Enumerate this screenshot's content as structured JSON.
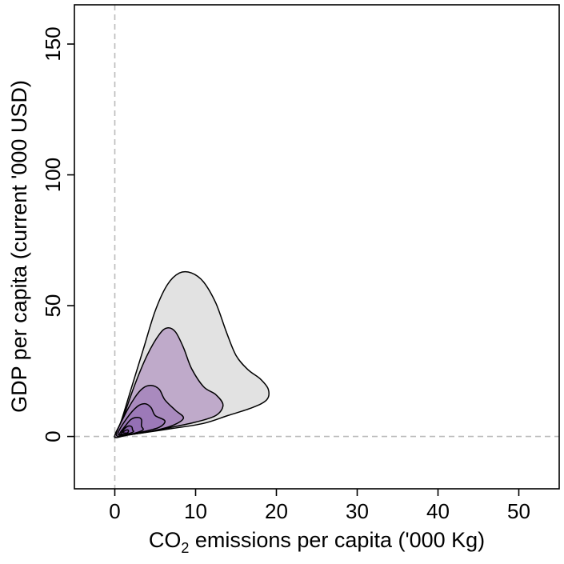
{
  "chart_data": {
    "type": "contour",
    "title": "",
    "xlabel": {
      "prefix": "CO",
      "subscript": "2",
      "suffix": " emissions per capita ('000 Kg)"
    },
    "ylabel": "GDP per capita (current '000 USD)",
    "xlim": [
      -5,
      55
    ],
    "ylim": [
      -20,
      165
    ],
    "xticks": [
      0,
      10,
      20,
      30,
      40,
      50
    ],
    "yticks": [
      0,
      50,
      100,
      150
    ],
    "reference_lines": {
      "x": 0,
      "y": 0,
      "style": "dashed",
      "color": "#bbbbbb"
    },
    "grid": false,
    "legend": "none",
    "levels": [
      {
        "name": "level-1",
        "fill": "#e2e2e2",
        "points": [
          [
            0,
            0
          ],
          [
            0.8,
            6
          ],
          [
            2,
            18
          ],
          [
            3.5,
            33
          ],
          [
            5,
            48
          ],
          [
            6.5,
            58
          ],
          [
            8,
            62.5
          ],
          [
            9.5,
            62.5
          ],
          [
            11,
            59
          ],
          [
            12.5,
            51
          ],
          [
            13.8,
            40
          ],
          [
            15,
            31
          ],
          [
            16.5,
            25.5
          ],
          [
            18,
            22
          ],
          [
            19,
            18
          ],
          [
            18.8,
            14
          ],
          [
            17,
            11
          ],
          [
            14,
            8
          ],
          [
            11,
            5
          ],
          [
            7,
            3
          ],
          [
            3,
            1.2
          ],
          [
            0.5,
            0.2
          ]
        ]
      },
      {
        "name": "level-2",
        "fill": "#bfaaca",
        "points": [
          [
            0,
            0
          ],
          [
            1,
            7
          ],
          [
            2.5,
            20
          ],
          [
            4,
            31
          ],
          [
            5.5,
            39
          ],
          [
            6.5,
            41.5
          ],
          [
            7.5,
            40
          ],
          [
            8.5,
            34
          ],
          [
            9.5,
            26
          ],
          [
            11,
            19
          ],
          [
            12.5,
            16
          ],
          [
            13.4,
            12
          ],
          [
            12.5,
            8
          ],
          [
            10,
            5.5
          ],
          [
            7,
            3.5
          ],
          [
            4,
            1.8
          ],
          [
            1.5,
            0.5
          ]
        ]
      },
      {
        "name": "level-3",
        "fill": "#a98abe",
        "points": [
          [
            0.2,
            0.5
          ],
          [
            1.2,
            8
          ],
          [
            2.5,
            15
          ],
          [
            3.5,
            18.5
          ],
          [
            4.5,
            19.5
          ],
          [
            5.5,
            18
          ],
          [
            6.2,
            14
          ],
          [
            7.5,
            10
          ],
          [
            8.5,
            7
          ],
          [
            7,
            4
          ],
          [
            4.5,
            2
          ],
          [
            2,
            0.8
          ]
        ]
      },
      {
        "name": "level-4",
        "fill": "#9c79b8",
        "points": [
          [
            0.4,
            1
          ],
          [
            1.5,
            7
          ],
          [
            2.8,
            11.5
          ],
          [
            3.8,
            12.5
          ],
          [
            4.5,
            11
          ],
          [
            5,
            8
          ],
          [
            6.2,
            6
          ],
          [
            5.5,
            3.5
          ],
          [
            3.5,
            1.8
          ],
          [
            1.5,
            0.7
          ]
        ]
      },
      {
        "name": "level-5",
        "fill": "#9470b4",
        "points": [
          [
            0.6,
            1
          ],
          [
            1.3,
            4
          ],
          [
            2,
            6.5
          ],
          [
            2.8,
            7.3
          ],
          [
            3.3,
            6.5
          ],
          [
            3.3,
            4
          ],
          [
            3.5,
            2.5
          ],
          [
            2.5,
            1.3
          ],
          [
            1.3,
            0.6
          ]
        ]
      },
      {
        "name": "level-6",
        "fill": "#8a64ad",
        "points": [
          [
            0.8,
            1.2
          ],
          [
            1.2,
            3
          ],
          [
            1.7,
            4
          ],
          [
            2.1,
            3.7
          ],
          [
            2.2,
            2.5
          ],
          [
            2.3,
            1.8
          ],
          [
            1.6,
            1
          ],
          [
            1,
            0.8
          ]
        ]
      },
      {
        "name": "level-7",
        "fill": "#7d53a3",
        "points": [
          [
            1,
            1.5
          ],
          [
            1.3,
            2.3
          ],
          [
            1.6,
            2.5
          ],
          [
            1.7,
            2
          ],
          [
            1.5,
            1.3
          ]
        ]
      }
    ]
  }
}
